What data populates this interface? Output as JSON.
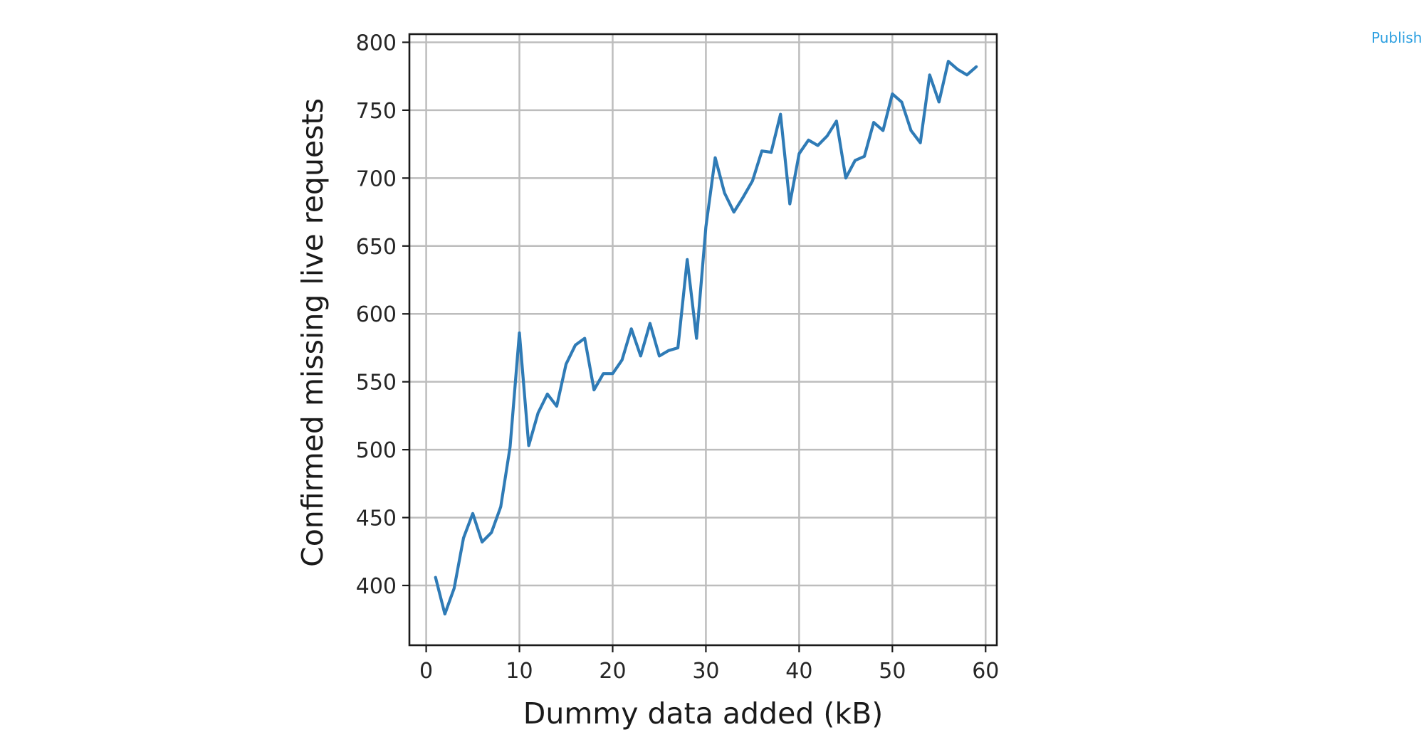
{
  "header": {
    "publish_label": "Publish"
  },
  "colors": {
    "line": "#2f7bb6",
    "grid": "#bdbdbd",
    "frame": "#1a1a1a",
    "link": "#2b9fe0"
  },
  "chart_data": {
    "type": "line",
    "title": "",
    "xlabel": "Dummy data added (kB)",
    "ylabel": "Confirmed missing live requests",
    "xlim": [
      -1.8,
      61.2
    ],
    "ylim": [
      356,
      806
    ],
    "x_ticks": [
      0,
      10,
      20,
      30,
      40,
      50,
      60
    ],
    "y_ticks": [
      400,
      450,
      500,
      550,
      600,
      650,
      700,
      750,
      800
    ],
    "grid": true,
    "legend": "none",
    "series": [
      {
        "x": [
          1,
          2,
          3,
          4,
          5,
          6,
          7,
          8,
          9,
          10,
          11,
          12,
          13,
          14,
          15,
          16,
          17,
          18,
          19,
          20,
          21,
          22,
          23,
          24,
          25,
          26,
          27,
          28,
          29,
          30,
          31,
          32,
          33,
          34,
          35,
          36,
          37,
          38,
          39,
          40,
          41,
          42,
          43,
          44,
          45,
          46,
          47,
          48,
          49,
          50,
          51,
          52,
          53,
          54,
          55,
          56,
          57,
          58,
          59
        ],
        "values": [
          406,
          379,
          398,
          435,
          453,
          432,
          439,
          458,
          502,
          586,
          503,
          527,
          541,
          532,
          563,
          577,
          582,
          544,
          556,
          556,
          566,
          589,
          569,
          593,
          569,
          573,
          575,
          640,
          582,
          664,
          715,
          689,
          675,
          686,
          698,
          720,
          719,
          747,
          681,
          718,
          728,
          724,
          731,
          742,
          700,
          713,
          716,
          741,
          735,
          762,
          756,
          735,
          726,
          776,
          756,
          786,
          780,
          776,
          782
        ]
      }
    ]
  }
}
